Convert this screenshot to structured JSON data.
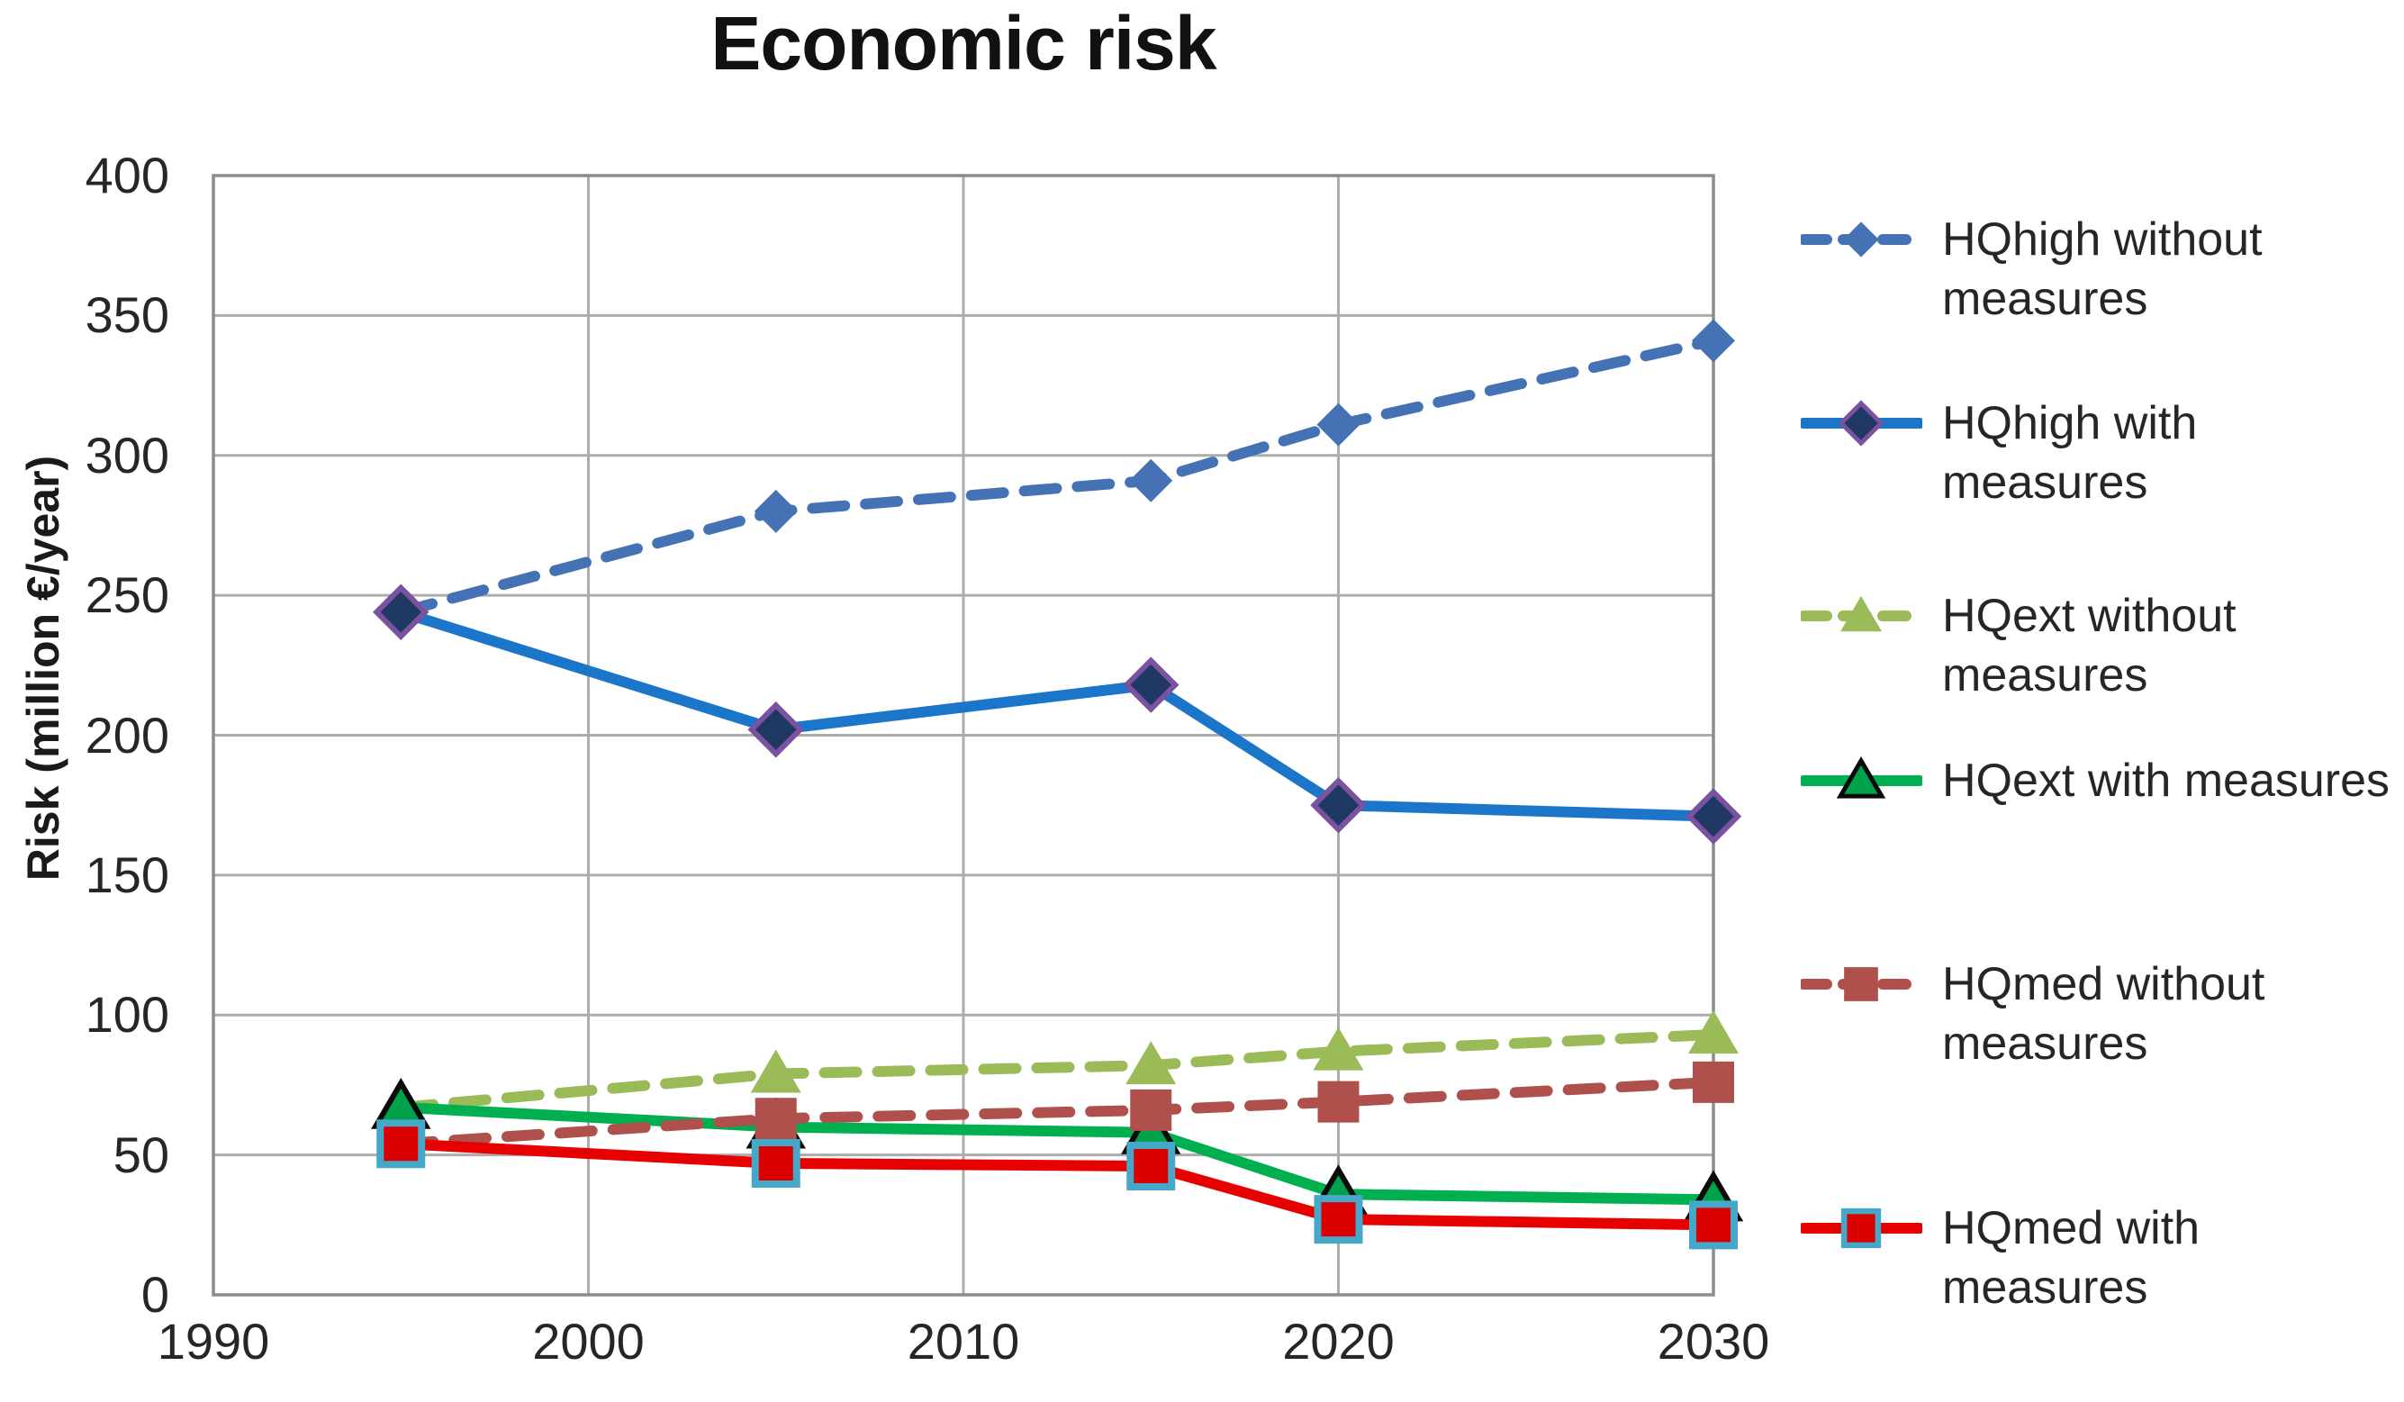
{
  "chart_data": {
    "type": "line",
    "title": "Economic risk",
    "xlabel": "",
    "ylabel": "Risk (million €/year)",
    "x": [
      1995,
      2005,
      2015,
      2020,
      2030
    ],
    "xlim": [
      1990,
      2030
    ],
    "ylim": [
      0,
      400
    ],
    "x_ticks": [
      1990,
      2000,
      2010,
      2020,
      2030
    ],
    "y_ticks": [
      0,
      50,
      100,
      150,
      200,
      250,
      300,
      350,
      400
    ],
    "grid": true,
    "legend_position": "right",
    "colors": {
      "grid": "#ACACAC",
      "plot_border": "#8C8C8C",
      "tick_text": "#262626",
      "title_text": "#111111"
    },
    "series": [
      {
        "name": "HQhigh without measures",
        "legend_lines": [
          "HQhigh without",
          "measures"
        ],
        "values": [
          244,
          280,
          291,
          311,
          341
        ],
        "color": "#4472B4",
        "dashed": true,
        "marker": "diamond",
        "marker_fill": "#4472B4",
        "marker_stroke": "none"
      },
      {
        "name": "HQhigh with measures",
        "legend_lines": [
          "HQhigh with",
          "measures"
        ],
        "values": [
          244,
          202,
          218,
          175,
          171
        ],
        "color": "#1B75C8",
        "dashed": false,
        "marker": "diamond",
        "marker_fill": "#203864",
        "marker_stroke": "#7A52A0"
      },
      {
        "name": "HQext without measures",
        "legend_lines": [
          "HQext without",
          "measures"
        ],
        "values": [
          67,
          79,
          82,
          87,
          93
        ],
        "color": "#9BBB59",
        "dashed": true,
        "marker": "triangle",
        "marker_fill": "#9BBB59",
        "marker_stroke": "none"
      },
      {
        "name": "HQext with measures",
        "legend_lines": [
          "HQext with measures"
        ],
        "values": [
          67,
          60,
          58,
          36,
          34
        ],
        "color": "#00B050",
        "dashed": false,
        "marker": "triangle",
        "marker_fill": "#00A14B",
        "marker_stroke": "#0A0A0A"
      },
      {
        "name": "HQmed without measures",
        "legend_lines": [
          "HQmed without",
          "measures"
        ],
        "values": [
          54,
          63,
          66,
          69,
          76
        ],
        "color": "#B0504D",
        "dashed": true,
        "marker": "square",
        "marker_fill": "#B0504D",
        "marker_stroke": "none"
      },
      {
        "name": "HQmed with measures",
        "legend_lines": [
          "HQmed with",
          "measures"
        ],
        "values": [
          54,
          47,
          46,
          27,
          25
        ],
        "color": "#E60000",
        "dashed": false,
        "marker": "square",
        "marker_fill": "#DB0000",
        "marker_stroke": "#45A8C8"
      }
    ]
  }
}
